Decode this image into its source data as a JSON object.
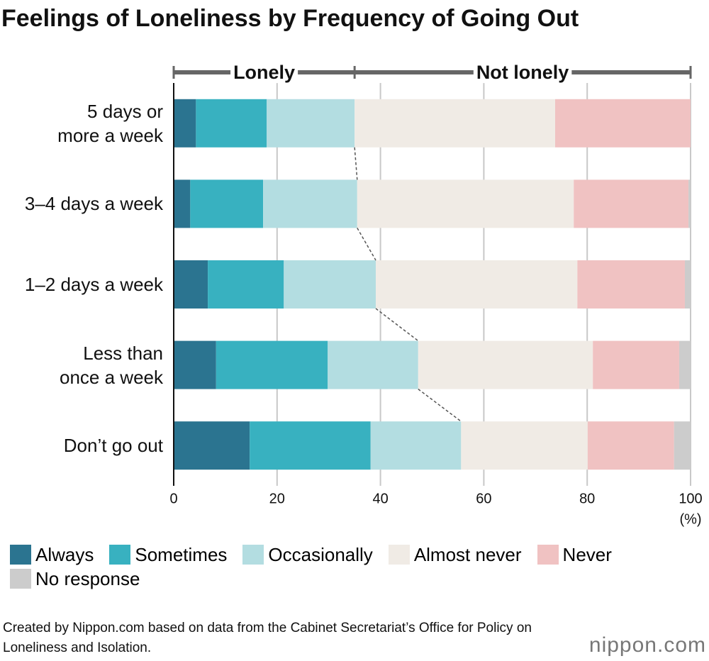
{
  "chart_data": {
    "type": "stacked-bar-horizontal",
    "title": "Feelings of Loneliness by Frequency of Going Out",
    "categories": [
      "5 days or\nmore a week",
      "3–4 days a week",
      "1–2 days a week",
      "Less than\nonce a week",
      "Don’t go out"
    ],
    "series": [
      {
        "name": "Always",
        "color": "#2b7490",
        "values": [
          4.3,
          3.2,
          6.6,
          8.2,
          14.7
        ]
      },
      {
        "name": "Sometimes",
        "color": "#38b1c0",
        "values": [
          13.7,
          14.1,
          14.7,
          21.6,
          23.4
        ]
      },
      {
        "name": "Occasionally",
        "color": "#b3dde1",
        "values": [
          17.0,
          18.2,
          17.8,
          17.5,
          17.5
        ]
      },
      {
        "name": "Almost never",
        "color": "#f0ebe5",
        "values": [
          38.8,
          41.9,
          39.0,
          33.8,
          24.5
        ]
      },
      {
        "name": "Never",
        "color": "#f0c2c2",
        "values": [
          26.2,
          22.2,
          20.8,
          16.7,
          16.7
        ]
      },
      {
        "name": "No response",
        "color": "#cccccc",
        "values": [
          0,
          0.4,
          1.1,
          2.2,
          3.2
        ]
      }
    ],
    "xlim": [
      0,
      100
    ],
    "xticks": [
      0,
      20,
      40,
      60,
      80,
      100
    ],
    "x_unit": "(%)",
    "grid": true,
    "annotations": [
      "Lonely",
      "Not lonely"
    ],
    "source": "Created by Nippon.com based on data from the Cabinet Secretariat’s Office for Policy on Loneliness and Isolation.",
    "logo": "nippon.com"
  }
}
